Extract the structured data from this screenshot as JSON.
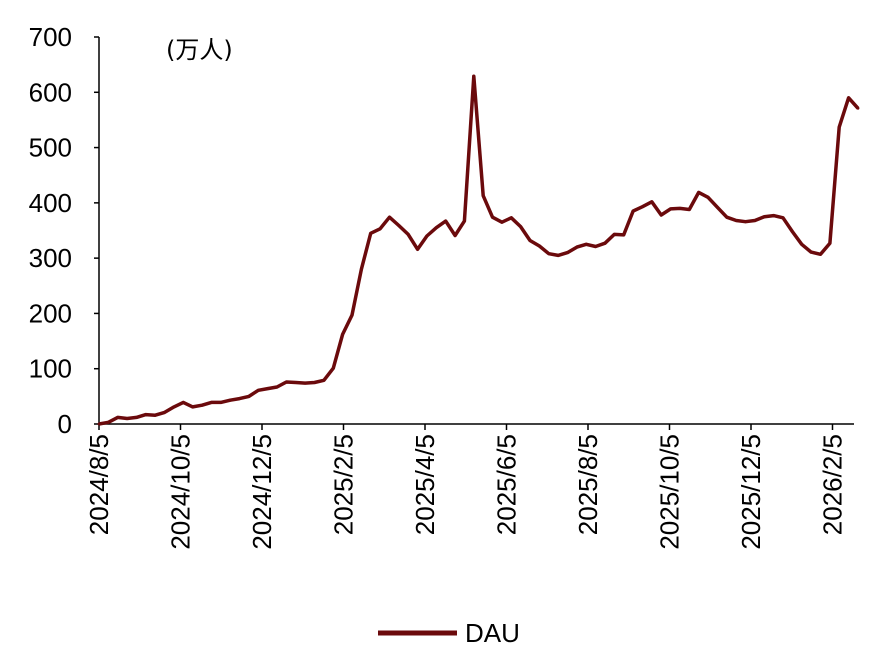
{
  "chart_data": {
    "type": "line",
    "unit": "(万人)",
    "ylim": [
      0,
      700
    ],
    "yticks": [
      "0",
      "100",
      "200",
      "300",
      "400",
      "500",
      "600",
      "700"
    ],
    "ytick_values": [
      0,
      100,
      200,
      300,
      400,
      500,
      600,
      700
    ],
    "xticks": [
      "2024/8/5",
      "2024/10/5",
      "2024/12/5",
      "2025/2/5",
      "2025/4/5",
      "2025/6/5",
      "2025/8/5",
      "2025/10/5",
      "2025/12/5",
      "2026/2/5"
    ],
    "x_unit": "week",
    "grid": false,
    "legend_position": "bottom",
    "line_color": "#6b0a0c",
    "series": [
      {
        "name": "DAU",
        "start": "2024/8/5",
        "values": [
          0,
          3,
          12,
          10,
          12,
          17,
          16,
          21,
          31,
          39,
          31,
          34,
          39,
          39,
          43,
          46,
          50,
          61,
          64,
          67,
          76,
          75,
          74,
          75,
          79,
          101,
          162,
          197,
          280,
          345,
          353,
          374,
          359,
          343,
          316,
          340,
          355,
          367,
          341,
          367,
          629,
          413,
          374,
          365,
          373,
          357,
          332,
          322,
          308,
          305,
          310,
          320,
          325,
          321,
          327,
          343,
          342,
          385,
          393,
          402,
          378,
          389,
          390,
          388,
          419,
          410,
          392,
          374,
          368,
          366,
          368,
          375,
          377,
          373,
          348,
          325,
          311,
          307,
          327,
          537,
          590,
          571
        ]
      }
    ]
  }
}
